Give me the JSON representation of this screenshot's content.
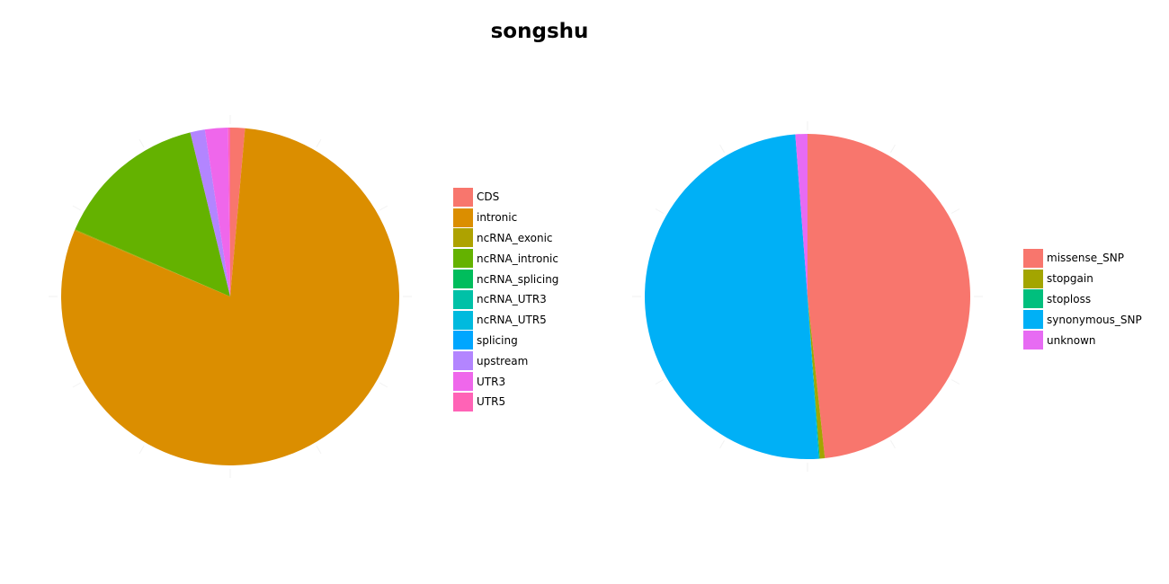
{
  "title": "songshu",
  "chart_data": [
    {
      "type": "pie",
      "title": "",
      "start": "12 o'clock, clockwise",
      "grid": true,
      "legend_position": "right",
      "slices": [
        {
          "label": "CDS",
          "value": 1.4,
          "color": "#F8766D"
        },
        {
          "label": "intronic",
          "value": 80.0,
          "color": "#DB8E00"
        },
        {
          "label": "ncRNA_exonic",
          "value": 0.1,
          "color": "#AEA200"
        },
        {
          "label": "ncRNA_intronic",
          "value": 14.7,
          "color": "#64B200"
        },
        {
          "label": "ncRNA_splicing",
          "value": 0.0,
          "color": "#00BD5C"
        },
        {
          "label": "ncRNA_UTR3",
          "value": 0.0,
          "color": "#00C1A7"
        },
        {
          "label": "ncRNA_UTR5",
          "value": 0.0,
          "color": "#00BADE"
        },
        {
          "label": "splicing",
          "value": 0.0,
          "color": "#00A6FF"
        },
        {
          "label": "upstream",
          "value": 1.4,
          "color": "#B385FF"
        },
        {
          "label": "UTR3",
          "value": 2.2,
          "color": "#EF67EB"
        },
        {
          "label": "UTR5",
          "value": 0.2,
          "color": "#FF63B6"
        }
      ]
    },
    {
      "type": "pie",
      "title": "",
      "start": "12 o'clock, clockwise",
      "grid": true,
      "legend_position": "right",
      "slices": [
        {
          "label": "missense_SNP",
          "value": 48.3,
          "color": "#F8766D"
        },
        {
          "label": "stopgain",
          "value": 0.5,
          "color": "#A3A500"
        },
        {
          "label": "stoploss",
          "value": 0.1,
          "color": "#00BF7D"
        },
        {
          "label": "synonymous_SNP",
          "value": 49.9,
          "color": "#00B0F6"
        },
        {
          "label": "unknown",
          "value": 1.2,
          "color": "#E76BF3"
        }
      ]
    }
  ]
}
